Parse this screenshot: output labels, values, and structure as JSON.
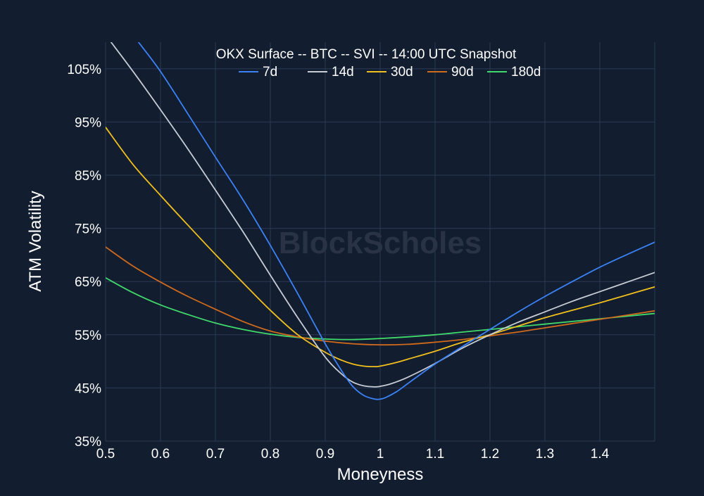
{
  "chart_data": {
    "type": "line",
    "title": "OKX Surface -- BTC -- SVI -- 14:00 UTC Snapshot",
    "xlabel": "Moneyness",
    "ylabel": "ATM Volatility",
    "xlim": [
      0.5,
      1.5
    ],
    "ylim": [
      35,
      110
    ],
    "x_ticks": [
      0.5,
      0.6,
      0.7,
      0.8,
      0.9,
      1.0,
      1.1,
      1.2,
      1.3,
      1.4
    ],
    "x_tick_labels": [
      "0.5",
      "0.6",
      "0.7",
      "0.8",
      "0.9",
      "1",
      "1.1",
      "1.2",
      "1.3",
      "1.4"
    ],
    "y_ticks": [
      35,
      45,
      55,
      65,
      75,
      85,
      95,
      105
    ],
    "y_tick_labels": [
      "35%",
      "45%",
      "55%",
      "65%",
      "75%",
      "85%",
      "95%",
      "105%"
    ],
    "grid": true,
    "legend_position": "top-center",
    "watermark": "BlockScholes",
    "series": [
      {
        "name": "7d",
        "color": "#3b82f6",
        "x": [
          0.56,
          0.6,
          0.65,
          0.7,
          0.75,
          0.8,
          0.85,
          0.9,
          0.93,
          0.95,
          0.97,
          0.99,
          1.0,
          1.01,
          1.03,
          1.05,
          1.1,
          1.15,
          1.2,
          1.25,
          1.3,
          1.35,
          1.4,
          1.45,
          1.5
        ],
        "y": [
          110,
          104.5,
          96.5,
          88.4,
          80.4,
          71.8,
          62.7,
          53.3,
          48.2,
          45.3,
          43.6,
          42.9,
          42.9,
          43.2,
          44.3,
          45.8,
          49.5,
          52.8,
          56.0,
          59.2,
          62.2,
          65.0,
          67.7,
          70.1,
          72.4
        ]
      },
      {
        "name": "14d",
        "color": "#c8ccd4",
        "x": [
          0.51,
          0.55,
          0.6,
          0.65,
          0.7,
          0.75,
          0.8,
          0.85,
          0.9,
          0.93,
          0.95,
          0.97,
          0.99,
          1.0,
          1.02,
          1.05,
          1.1,
          1.15,
          1.2,
          1.25,
          1.3,
          1.35,
          1.4,
          1.45,
          1.5
        ],
        "y": [
          110,
          104.5,
          97.3,
          89.9,
          82.2,
          74.4,
          66.2,
          58.2,
          50.8,
          47.6,
          46.1,
          45.4,
          45.2,
          45.3,
          45.8,
          47.0,
          49.6,
          52.5,
          55.0,
          57.3,
          59.3,
          61.3,
          63.1,
          64.9,
          66.7
        ]
      },
      {
        "name": "30d",
        "color": "#f2c01e",
        "x": [
          0.5,
          0.55,
          0.6,
          0.65,
          0.7,
          0.75,
          0.8,
          0.85,
          0.9,
          0.93,
          0.95,
          0.97,
          0.99,
          1.0,
          1.03,
          1.05,
          1.1,
          1.15,
          1.2,
          1.25,
          1.3,
          1.35,
          1.4,
          1.45,
          1.5
        ],
        "y": [
          94.0,
          87.0,
          81.2,
          75.6,
          70.1,
          64.8,
          59.6,
          55.0,
          51.7,
          50.2,
          49.5,
          49.1,
          49.0,
          49.1,
          49.8,
          50.4,
          51.9,
          53.6,
          55.0,
          56.6,
          58.2,
          59.6,
          61.0,
          62.5,
          64.0
        ]
      },
      {
        "name": "90d",
        "color": "#d06a1c",
        "x": [
          0.5,
          0.55,
          0.6,
          0.65,
          0.7,
          0.75,
          0.8,
          0.85,
          0.9,
          0.95,
          1.0,
          1.05,
          1.1,
          1.15,
          1.2,
          1.25,
          1.3,
          1.35,
          1.4,
          1.45,
          1.5
        ],
        "y": [
          71.5,
          67.9,
          64.9,
          62.2,
          59.8,
          57.5,
          55.7,
          54.6,
          53.8,
          53.3,
          53.1,
          53.2,
          53.6,
          54.1,
          54.8,
          55.5,
          56.3,
          57.1,
          57.9,
          58.7,
          59.5
        ]
      },
      {
        "name": "180d",
        "color": "#41d96b",
        "x": [
          0.5,
          0.55,
          0.6,
          0.65,
          0.7,
          0.75,
          0.8,
          0.85,
          0.9,
          0.95,
          1.0,
          1.05,
          1.1,
          1.15,
          1.2,
          1.25,
          1.3,
          1.35,
          1.4,
          1.45,
          1.5
        ],
        "y": [
          65.7,
          62.9,
          60.6,
          58.8,
          57.2,
          56.0,
          55.1,
          54.5,
          54.2,
          54.1,
          54.3,
          54.6,
          55.0,
          55.5,
          56.0,
          56.5,
          57.0,
          57.5,
          58.0,
          58.5,
          59.0
        ]
      }
    ]
  }
}
